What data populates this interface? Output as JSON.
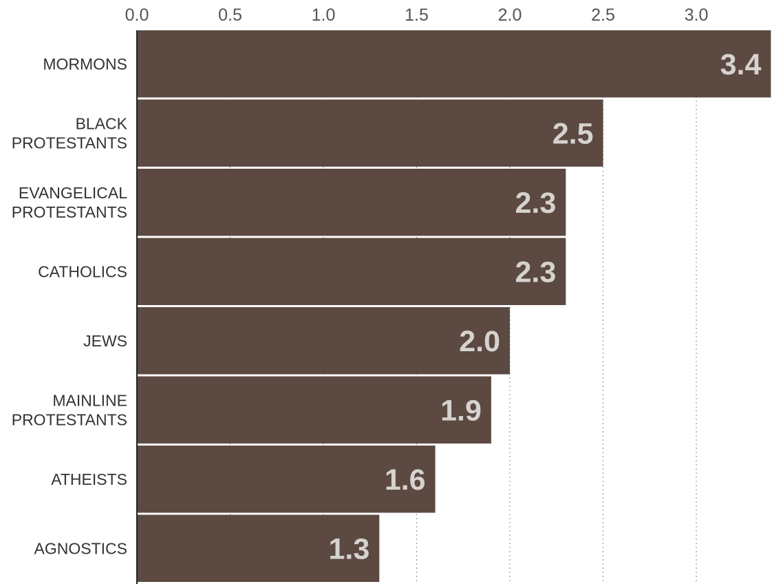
{
  "chart_data": {
    "type": "bar",
    "orientation": "horizontal",
    "categories": [
      [
        "MORMONS"
      ],
      [
        "BLACK",
        "PROTESTANTS"
      ],
      [
        "EVANGELICAL",
        "PROTESTANTS"
      ],
      [
        "CATHOLICS"
      ],
      [
        "JEWS"
      ],
      [
        "MAINLINE",
        "PROTESTANTS"
      ],
      [
        "ATHEISTS"
      ],
      [
        "AGNOSTICS"
      ]
    ],
    "values": [
      3.4,
      2.5,
      2.3,
      2.3,
      2.0,
      1.9,
      1.6,
      1.3
    ],
    "value_labels": [
      "3.4",
      "2.5",
      "2.3",
      "2.3",
      "2.0",
      "1.9",
      "1.6",
      "1.3"
    ],
    "x_ticks": [
      0.0,
      0.5,
      1.0,
      1.5,
      2.0,
      2.5,
      3.0
    ],
    "x_tick_labels": [
      "0.0",
      "0.5",
      "1.0",
      "1.5",
      "2.0",
      "2.5",
      "3.0"
    ],
    "xlim": [
      0,
      3.4
    ],
    "x_axis_position": "top",
    "grid": "vertical dotted",
    "bar_color": "#5c4a42",
    "value_label_color": "#d6d2cf",
    "title": "",
    "xlabel": "",
    "ylabel": ""
  }
}
